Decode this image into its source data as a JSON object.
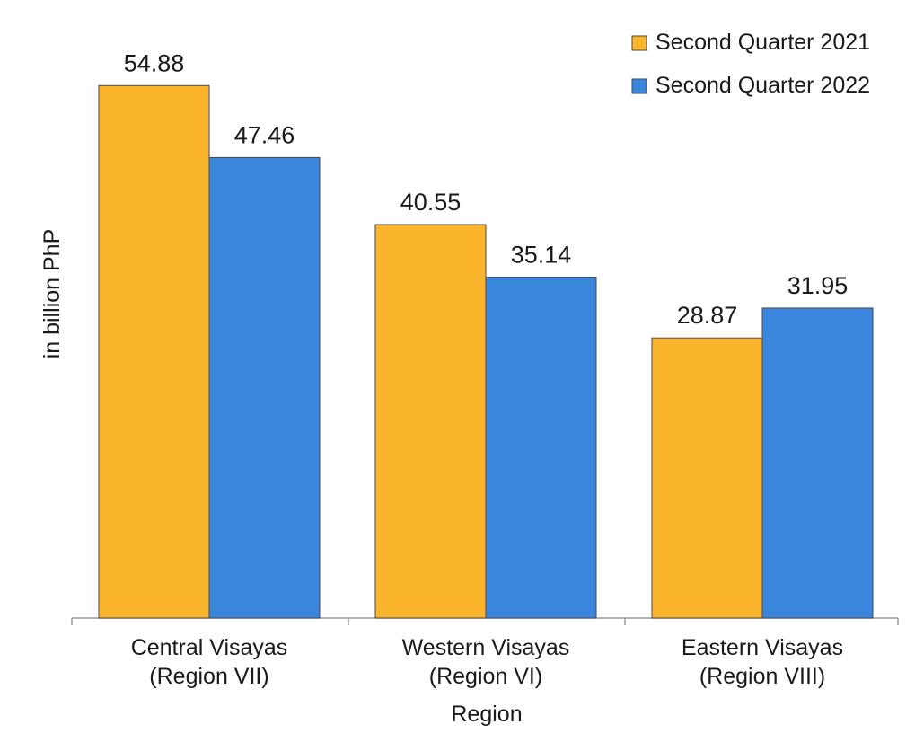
{
  "chart_data": {
    "type": "bar",
    "categories": [
      [
        "Central Visayas",
        "(Region VII)"
      ],
      [
        "Western Visayas",
        "(Region VI)"
      ],
      [
        "Eastern Visayas",
        "(Region VIII)"
      ]
    ],
    "series": [
      {
        "name": "Second Quarter 2021",
        "values": [
          54.88,
          40.55,
          28.87
        ],
        "color": "#fbb52c"
      },
      {
        "name": "Second Quarter 2022",
        "values": [
          47.46,
          35.14,
          31.95
        ],
        "color": "#3a86dc"
      }
    ],
    "value_labels": [
      [
        "54.88",
        "40.55",
        "28.87"
      ],
      [
        "47.46",
        "35.14",
        "31.95"
      ]
    ],
    "title": "",
    "xlabel": "Region",
    "ylabel": "in billion PhP",
    "ylim": [
      0,
      60
    ],
    "grid": false,
    "legend_position": "top-right"
  }
}
